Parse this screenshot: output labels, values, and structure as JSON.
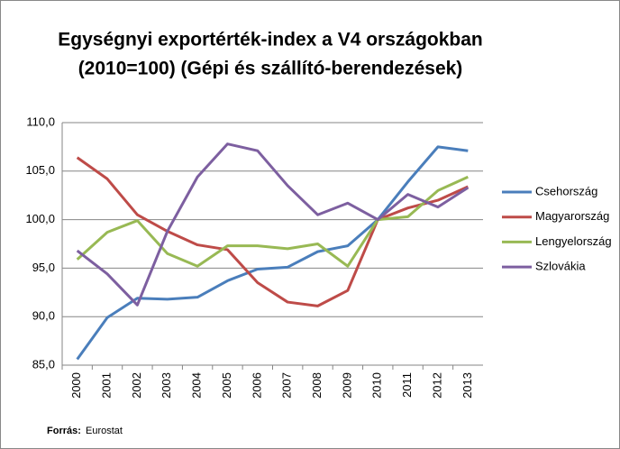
{
  "chart_data": {
    "type": "line",
    "title": [
      "Egységnyi exportérték-index a V4 országokban",
      "(2010=100) (Gépi és szállító-berendezések)"
    ],
    "categories": [
      "2000",
      "2001",
      "2002",
      "2003",
      "2004",
      "2005",
      "2006",
      "2007",
      "2008",
      "2009",
      "2010",
      "2011",
      "2012",
      "2013"
    ],
    "series": [
      {
        "name": "Csehország",
        "color": "#4a7ebb",
        "values": [
          85.6,
          89.9,
          91.9,
          91.8,
          92.0,
          93.7,
          94.9,
          95.1,
          96.7,
          97.3,
          100,
          103.9,
          107.5,
          107.1
        ]
      },
      {
        "name": "Magyarország",
        "color": "#be4b48",
        "values": [
          106.4,
          104.2,
          100.5,
          98.8,
          97.4,
          96.9,
          93.5,
          91.5,
          91.1,
          92.7,
          100,
          101.2,
          102.0,
          103.4
        ]
      },
      {
        "name": "Lengyelország",
        "color": "#98b954",
        "values": [
          95.9,
          98.7,
          99.9,
          96.5,
          95.2,
          97.3,
          97.3,
          97.0,
          97.5,
          95.2,
          100,
          100.3,
          103.0,
          104.4
        ]
      },
      {
        "name": "Szlovákia",
        "color": "#7d5fa0",
        "values": [
          96.8,
          94.4,
          91.2,
          98.8,
          104.4,
          107.8,
          107.1,
          103.5,
          100.5,
          101.7,
          100,
          102.6,
          101.3,
          103.3
        ]
      }
    ],
    "ylim": [
      85,
      110
    ],
    "yticks": [
      {
        "value": 85,
        "label": "85,0"
      },
      {
        "value": 90,
        "label": "90,0"
      },
      {
        "value": 95,
        "label": "95,0"
      },
      {
        "value": 100,
        "label": "100,0"
      },
      {
        "value": 105,
        "label": "105,0"
      },
      {
        "value": 110,
        "label": "110,0"
      }
    ],
    "grid": true,
    "legend": "right",
    "source_label": "Forrás:",
    "source": "Eurostat"
  }
}
